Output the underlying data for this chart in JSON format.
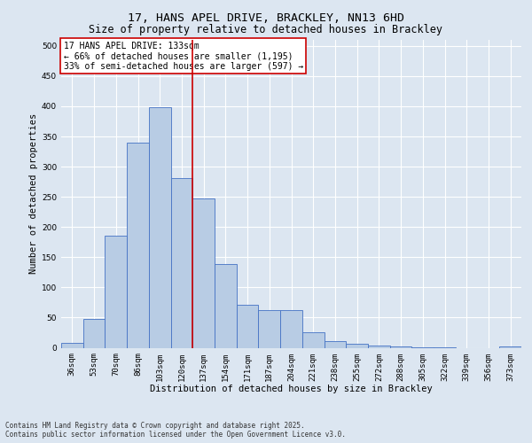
{
  "title_line1": "17, HANS APEL DRIVE, BRACKLEY, NN13 6HD",
  "title_line2": "Size of property relative to detached houses in Brackley",
  "xlabel": "Distribution of detached houses by size in Brackley",
  "ylabel": "Number of detached properties",
  "categories": [
    "36sqm",
    "53sqm",
    "70sqm",
    "86sqm",
    "103sqm",
    "120sqm",
    "137sqm",
    "154sqm",
    "171sqm",
    "187sqm",
    "204sqm",
    "221sqm",
    "238sqm",
    "255sqm",
    "272sqm",
    "288sqm",
    "305sqm",
    "322sqm",
    "339sqm",
    "356sqm",
    "373sqm"
  ],
  "values": [
    8,
    47,
    186,
    340,
    399,
    281,
    247,
    138,
    71,
    62,
    62,
    25,
    11,
    6,
    4,
    2,
    1,
    1,
    0,
    0,
    2
  ],
  "bar_color": "#b8cce4",
  "bar_edge_color": "#4472c4",
  "vline_x": 5.5,
  "vline_color": "#cc0000",
  "annotation_line1": "17 HANS APEL DRIVE: 133sqm",
  "annotation_line2": "← 66% of detached houses are smaller (1,195)",
  "annotation_line3": "33% of semi-detached houses are larger (597) →",
  "annotation_box_color": "#cc0000",
  "ylim": [
    0,
    510
  ],
  "yticks": [
    0,
    50,
    100,
    150,
    200,
    250,
    300,
    350,
    400,
    450,
    500
  ],
  "background_color": "#dce6f1",
  "plot_bg_color": "#dce6f1",
  "grid_color": "#ffffff",
  "footnote_line1": "Contains HM Land Registry data © Crown copyright and database right 2025.",
  "footnote_line2": "Contains public sector information licensed under the Open Government Licence v3.0.",
  "title_fontsize": 9.5,
  "subtitle_fontsize": 8.5,
  "axis_label_fontsize": 7.5,
  "tick_fontsize": 6.5,
  "annotation_fontsize": 7.0,
  "footnote_fontsize": 5.5
}
